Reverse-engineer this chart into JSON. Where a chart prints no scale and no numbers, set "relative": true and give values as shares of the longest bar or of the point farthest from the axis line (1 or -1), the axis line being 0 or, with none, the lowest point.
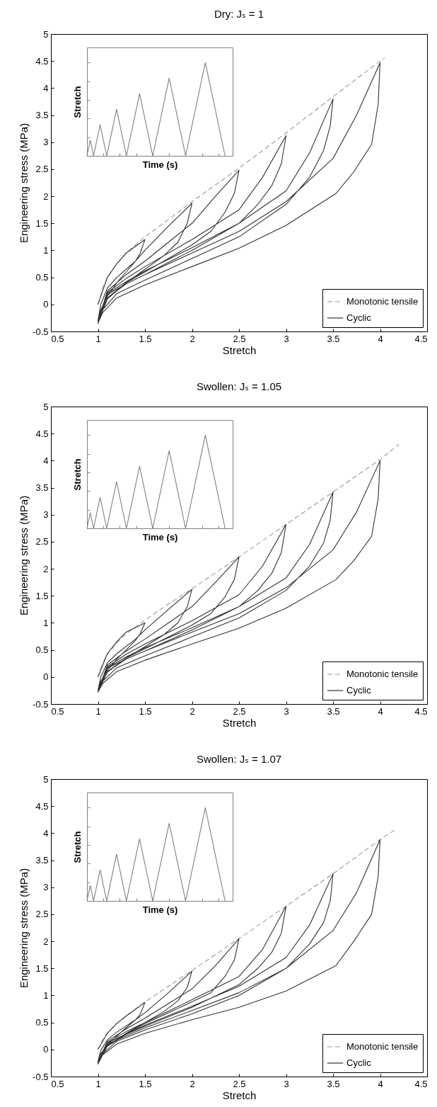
{
  "chart_data": [
    {
      "type": "line",
      "title": "Dry: Jₛ = 1",
      "xlabel": "Stretch",
      "ylabel": "Engineering stress (MPa)",
      "xlim": [
        0.5,
        4.5
      ],
      "xticks": [
        0.5,
        1,
        1.5,
        2,
        2.5,
        3,
        3.5,
        4,
        4.5
      ],
      "ylim": [
        -0.5,
        5
      ],
      "yticks": [
        -0.5,
        0,
        0.5,
        1,
        1.5,
        2,
        2.5,
        3,
        3.5,
        4,
        4.5,
        5
      ],
      "legend": "bottom right",
      "series": [
        {
          "name": "Monotonic tensile",
          "color": "#999999",
          "line_style": "dashed",
          "x": [
            1,
            1.05,
            1.1,
            1.2,
            1.3,
            1.5,
            1.75,
            2,
            2.5,
            3,
            3.5,
            4,
            4.05
          ],
          "values": [
            0,
            0.3,
            0.5,
            0.75,
            0.95,
            1.25,
            1.57,
            1.9,
            2.52,
            3.17,
            3.84,
            4.5,
            4.56
          ]
        },
        {
          "name": "Cyclic",
          "color": "#333333",
          "line_style": "solid",
          "x": [
            1,
            1.1,
            1.2,
            1.3,
            1.5,
            1.45,
            1.4,
            1.3,
            1.2,
            1.1,
            1.03,
            1,
            1.03,
            1.1,
            1.2,
            1.4,
            1.5,
            1.75,
            2,
            1.95,
            1.85,
            1.7,
            1.5,
            1.3,
            1.1,
            1,
            1.1,
            1.3,
            1.5,
            1.75,
            2,
            2.25,
            2.5,
            2.45,
            2.35,
            2.2,
            2,
            1.75,
            1.5,
            1.3,
            1.1,
            1,
            1.1,
            1.3,
            1.5,
            2,
            2.5,
            2.75,
            3,
            2.95,
            2.85,
            2.7,
            2.5,
            2,
            1.5,
            1.3,
            1.1,
            1,
            1.1,
            1.3,
            1.5,
            2,
            2.5,
            3,
            3.25,
            3.5,
            3.47,
            3.4,
            3.25,
            3,
            2.5,
            2,
            1.5,
            1.2,
            1.05,
            1,
            1.1,
            1.3,
            1.5,
            2,
            2.5,
            3,
            3.5,
            3.75,
            4,
            3.98,
            3.91,
            3.72,
            3.53,
            3,
            2.5,
            2,
            1.5,
            1.2,
            1.05,
            1
          ],
          "values": [
            0,
            0.5,
            0.75,
            0.95,
            1.2,
            0.95,
            0.8,
            0.6,
            0.4,
            0.15,
            -0.1,
            -0.3,
            0,
            0.3,
            0.5,
            0.8,
            1,
            1.45,
            1.87,
            1.5,
            1.15,
            0.9,
            0.65,
            0.4,
            0.1,
            -0.33,
            0.25,
            0.55,
            0.8,
            1.15,
            1.5,
            2,
            2.48,
            2.05,
            1.7,
            1.35,
            1.1,
            0.85,
            0.6,
            0.4,
            0.12,
            -0.35,
            0.22,
            0.48,
            0.7,
            1.2,
            1.75,
            2.35,
            3.12,
            2.6,
            2.2,
            1.85,
            1.5,
            1,
            0.55,
            0.38,
            0.12,
            -0.35,
            0.2,
            0.42,
            0.62,
            1.05,
            1.5,
            2.1,
            2.8,
            3.8,
            3.3,
            2.85,
            2.35,
            1.85,
            1.25,
            0.85,
            0.45,
            0.2,
            -0.1,
            -0.35,
            0.18,
            0.38,
            0.55,
            0.95,
            1.35,
            1.9,
            2.7,
            3.5,
            4.47,
            3.7,
            2.96,
            2.45,
            2.05,
            1.46,
            1.04,
            0.7,
            0.36,
            0.12,
            -0.15,
            -0.35
          ]
        }
      ]
    },
    {
      "type": "line",
      "relative": true,
      "xlabel": "Time (s)",
      "ylabel": "Stretch",
      "tick_labels": false,
      "categories": [
        null,
        null,
        null,
        null,
        null,
        null,
        null,
        null,
        null,
        null,
        null,
        null,
        null,
        null,
        null,
        null,
        null,
        null,
        null,
        null,
        null,
        null,
        null,
        null,
        null,
        null,
        null,
        null,
        null,
        null,
        null,
        null,
        null,
        null,
        null,
        null,
        null,
        null,
        null,
        null,
        null,
        null,
        null
      ],
      "series": [
        {
          "color": "#808080",
          "values": [
            0,
            0.167,
            0,
            0.167,
            0.333,
            0.167,
            0,
            0.167,
            0.333,
            0.5,
            0.333,
            0.167,
            0,
            0.167,
            0.333,
            0.5,
            0.667,
            0.5,
            0.333,
            0.167,
            0,
            0.167,
            0.333,
            0.5,
            0.667,
            0.833,
            0.667,
            0.5,
            0.333,
            0.167,
            0,
            0.167,
            0.333,
            0.5,
            0.667,
            0.833,
            1,
            0.833,
            0.667,
            0.5,
            0.333,
            0.167,
            0
          ]
        }
      ]
    },
    {
      "type": "line",
      "title": "Swollen: Jₛ = 1.05",
      "xlabel": "Stretch",
      "ylabel": "Engineering stress (MPa)",
      "xlim": [
        0.5,
        4.5
      ],
      "xticks": [
        0.5,
        1,
        1.5,
        2,
        2.5,
        3,
        3.5,
        4,
        4.5
      ],
      "ylim": [
        -0.5,
        5
      ],
      "yticks": [
        -0.5,
        0,
        0.5,
        1,
        1.5,
        2,
        2.5,
        3,
        3.5,
        4,
        4.5,
        5
      ],
      "legend": "bottom right",
      "series": [
        {
          "name": "Monotonic tensile",
          "color": "#999999",
          "line_style": "dashed",
          "x": [
            1,
            1.05,
            1.1,
            1.2,
            1.3,
            1.5,
            1.75,
            2,
            2.5,
            3,
            3.5,
            4,
            4.2
          ],
          "values": [
            0,
            0.25,
            0.42,
            0.63,
            0.8,
            1.05,
            1.35,
            1.63,
            2.22,
            2.82,
            3.42,
            4.02,
            4.3
          ]
        },
        {
          "name": "Cyclic",
          "color": "#333333",
          "line_style": "solid",
          "x": [
            1,
            1.1,
            1.2,
            1.3,
            1.5,
            1.45,
            1.4,
            1.3,
            1.2,
            1.1,
            1.03,
            1,
            1.03,
            1.1,
            1.2,
            1.4,
            1.5,
            1.75,
            2,
            1.95,
            1.85,
            1.7,
            1.5,
            1.3,
            1.1,
            1,
            1.1,
            1.3,
            1.5,
            1.75,
            2,
            2.25,
            2.5,
            2.45,
            2.35,
            2.2,
            2,
            1.75,
            1.5,
            1.3,
            1.1,
            1,
            1.1,
            1.3,
            1.5,
            2,
            2.5,
            2.75,
            3,
            2.95,
            2.85,
            2.7,
            2.5,
            2,
            1.5,
            1.3,
            1.1,
            1,
            1.1,
            1.3,
            1.5,
            2,
            2.5,
            3,
            3.25,
            3.5,
            3.47,
            3.4,
            3.25,
            3,
            2.5,
            2,
            1.5,
            1.2,
            1.05,
            1,
            1.1,
            1.3,
            1.5,
            2,
            2.5,
            3,
            3.5,
            3.75,
            4,
            3.98,
            3.91,
            3.72,
            3.53,
            3,
            2.5,
            2,
            1.5,
            1.2,
            1.05,
            1
          ],
          "values": [
            0,
            0.43,
            0.65,
            0.83,
            1,
            0.8,
            0.68,
            0.5,
            0.33,
            0.12,
            -0.08,
            -0.25,
            0,
            0.26,
            0.43,
            0.7,
            0.87,
            1.25,
            1.62,
            1.3,
            1,
            0.78,
            0.56,
            0.35,
            0.09,
            -0.27,
            0.22,
            0.48,
            0.7,
            1,
            1.3,
            1.75,
            2.22,
            1.8,
            1.48,
            1.17,
            0.96,
            0.74,
            0.52,
            0.35,
            0.1,
            -0.28,
            0.19,
            0.42,
            0.61,
            1.04,
            1.52,
            2.05,
            2.82,
            2.3,
            1.92,
            1.6,
            1.3,
            0.87,
            0.48,
            0.33,
            0.1,
            -0.28,
            0.17,
            0.37,
            0.54,
            0.91,
            1.3,
            1.83,
            2.45,
            3.42,
            2.9,
            2.48,
            2.05,
            1.6,
            1.09,
            0.74,
            0.39,
            0.17,
            -0.08,
            -0.28,
            0.16,
            0.33,
            0.48,
            0.83,
            1.17,
            1.65,
            2.35,
            3.05,
            4,
            3.3,
            2.6,
            2.15,
            1.8,
            1.27,
            0.9,
            0.61,
            0.31,
            0.1,
            -0.12,
            -0.28
          ]
        }
      ]
    },
    {
      "type": "line",
      "relative": true,
      "xlabel": "Time (s)",
      "ylabel": "Stretch",
      "tick_labels": false,
      "categories": [
        null,
        null,
        null,
        null,
        null,
        null,
        null,
        null,
        null,
        null,
        null,
        null,
        null,
        null,
        null,
        null,
        null,
        null,
        null,
        null,
        null,
        null,
        null,
        null,
        null,
        null,
        null,
        null,
        null,
        null,
        null,
        null,
        null,
        null,
        null,
        null,
        null,
        null,
        null,
        null,
        null,
        null,
        null
      ],
      "series": [
        {
          "color": "#808080",
          "values": [
            0,
            0.167,
            0,
            0.167,
            0.333,
            0.167,
            0,
            0.167,
            0.333,
            0.5,
            0.333,
            0.167,
            0,
            0.167,
            0.333,
            0.5,
            0.667,
            0.5,
            0.333,
            0.167,
            0,
            0.167,
            0.333,
            0.5,
            0.667,
            0.833,
            0.667,
            0.5,
            0.333,
            0.167,
            0,
            0.167,
            0.333,
            0.5,
            0.667,
            0.833,
            1,
            0.833,
            0.667,
            0.5,
            0.333,
            0.167,
            0
          ]
        }
      ]
    },
    {
      "type": "line",
      "title": "Swollen: Jₛ = 1.07",
      "xlabel": "Stretch",
      "ylabel": "Engineering stress (MPa)",
      "xlim": [
        0.5,
        4.5
      ],
      "xticks": [
        0.5,
        1,
        1.5,
        2,
        2.5,
        3,
        3.5,
        4,
        4.5
      ],
      "ylim": [
        -0.5,
        5
      ],
      "yticks": [
        -0.5,
        0,
        0.5,
        1,
        1.5,
        2,
        2.5,
        3,
        3.5,
        4,
        4.5,
        5
      ],
      "legend": "bottom right",
      "series": [
        {
          "name": "Monotonic tensile",
          "color": "#999999",
          "line_style": "dashed",
          "x": [
            1,
            1.05,
            1.1,
            1.2,
            1.3,
            1.5,
            1.75,
            2,
            2.5,
            3,
            3.5,
            4,
            4.15
          ],
          "values": [
            0,
            0.18,
            0.3,
            0.48,
            0.62,
            0.88,
            1.17,
            1.46,
            2.05,
            2.65,
            3.25,
            3.88,
            4.05
          ]
        },
        {
          "name": "Cyclic",
          "color": "#333333",
          "line_style": "solid",
          "x": [
            1,
            1.1,
            1.2,
            1.3,
            1.5,
            1.45,
            1.4,
            1.3,
            1.2,
            1.1,
            1.03,
            1,
            1.03,
            1.1,
            1.2,
            1.4,
            1.5,
            1.75,
            2,
            1.95,
            1.85,
            1.7,
            1.5,
            1.3,
            1.1,
            1,
            1.1,
            1.3,
            1.5,
            1.75,
            2,
            2.25,
            2.5,
            2.45,
            2.35,
            2.2,
            2,
            1.75,
            1.5,
            1.3,
            1.1,
            1,
            1.1,
            1.3,
            1.5,
            2,
            2.5,
            2.75,
            3,
            2.95,
            2.85,
            2.7,
            2.5,
            2,
            1.5,
            1.3,
            1.1,
            1,
            1.1,
            1.3,
            1.5,
            2,
            2.5,
            3,
            3.25,
            3.5,
            3.47,
            3.4,
            3.25,
            3,
            2.5,
            2,
            1.5,
            1.2,
            1.05,
            1,
            1.1,
            1.3,
            1.5,
            2,
            2.5,
            3,
            3.5,
            3.75,
            4,
            3.98,
            3.91,
            3.72,
            3.53,
            3,
            2.5,
            2,
            1.5,
            1.2,
            1.05,
            1
          ],
          "values": [
            0,
            0.3,
            0.48,
            0.62,
            0.87,
            0.65,
            0.55,
            0.4,
            0.25,
            0.08,
            -0.08,
            -0.22,
            -0.02,
            0.18,
            0.32,
            0.55,
            0.68,
            1.05,
            1.45,
            1.15,
            0.9,
            0.7,
            0.5,
            0.3,
            0.07,
            -0.24,
            0.15,
            0.38,
            0.58,
            0.85,
            1.12,
            1.55,
            2.05,
            1.65,
            1.35,
            1.05,
            0.88,
            0.68,
            0.48,
            0.3,
            0.07,
            -0.25,
            0.13,
            0.33,
            0.5,
            0.92,
            1.35,
            1.85,
            2.65,
            2.15,
            1.8,
            1.5,
            1.2,
            0.78,
            0.43,
            0.28,
            0.06,
            -0.26,
            0.12,
            0.29,
            0.45,
            0.8,
            1.17,
            1.7,
            2.3,
            3.25,
            2.75,
            2.35,
            1.95,
            1.5,
            1,
            0.66,
            0.36,
            0.15,
            -0.08,
            -0.27,
            0.1,
            0.25,
            0.4,
            0.72,
            1.05,
            1.5,
            2.2,
            2.9,
            3.88,
            3.2,
            2.5,
            2,
            1.55,
            1.08,
            0.78,
            0.55,
            0.3,
            0.1,
            -0.1,
            -0.27
          ]
        }
      ]
    },
    {
      "type": "line",
      "relative": true,
      "xlabel": "Time (s)",
      "ylabel": "Stretch",
      "tick_labels": false,
      "categories": [
        null,
        null,
        null,
        null,
        null,
        null,
        null,
        null,
        null,
        null,
        null,
        null,
        null,
        null,
        null,
        null,
        null,
        null,
        null,
        null,
        null,
        null,
        null,
        null,
        null,
        null,
        null,
        null,
        null,
        null,
        null,
        null,
        null,
        null,
        null,
        null,
        null,
        null,
        null,
        null,
        null,
        null,
        null
      ],
      "series": [
        {
          "color": "#808080",
          "values": [
            0,
            0.167,
            0,
            0.167,
            0.333,
            0.167,
            0,
            0.167,
            0.333,
            0.5,
            0.333,
            0.167,
            0,
            0.167,
            0.333,
            0.5,
            0.667,
            0.5,
            0.333,
            0.167,
            0,
            0.167,
            0.333,
            0.5,
            0.667,
            0.833,
            0.667,
            0.5,
            0.333,
            0.167,
            0,
            0.167,
            0.333,
            0.5,
            0.667,
            0.833,
            1,
            0.833,
            0.667,
            0.5,
            0.333,
            0.167,
            0
          ]
        }
      ]
    }
  ]
}
